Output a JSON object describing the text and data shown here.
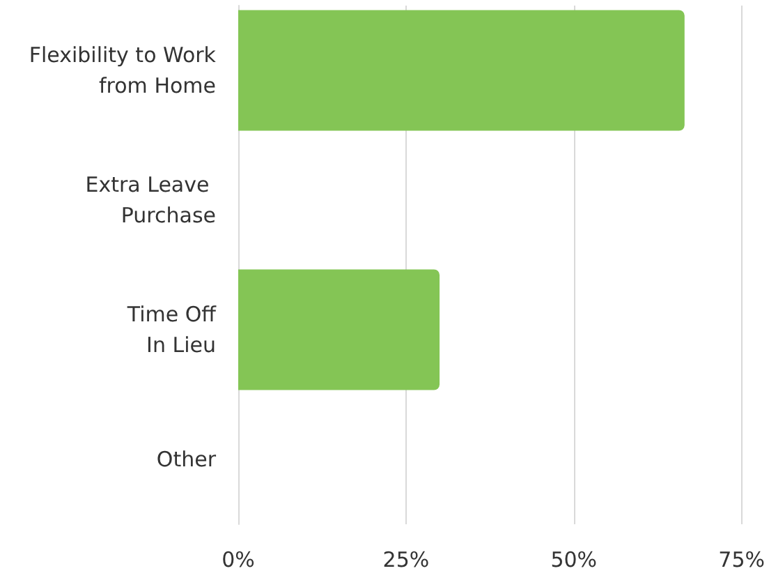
{
  "chart_data": {
    "type": "bar",
    "orientation": "horizontal",
    "categories": [
      "Flexibility to Work\nfrom Home",
      "Extra Leave \nPurchase",
      "Time Off\nIn Lieu",
      "Other"
    ],
    "values": [
      66.5,
      0,
      30,
      0
    ],
    "color": "#84c555",
    "xlim": [
      0,
      75
    ],
    "xticks": [
      {
        "value": 0,
        "label": "0%"
      },
      {
        "value": 25,
        "label": "25%"
      },
      {
        "value": 50,
        "label": "50%"
      },
      {
        "value": 75,
        "label": "75%"
      }
    ],
    "grid": "x"
  }
}
